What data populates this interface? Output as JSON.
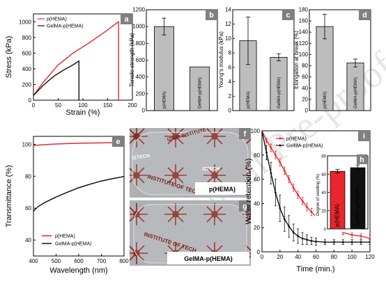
{
  "watermark": "Journal Pre-proof",
  "colors": {
    "phema": "#e8262c",
    "gelma": "#111111",
    "bar": "#bdbdbd",
    "letter_bg": "#808080"
  },
  "chart_data": [
    {
      "id": "a",
      "letter": "a",
      "type": "line",
      "xlabel": "Strain (%)",
      "ylabel": "Stress (kPa)",
      "xlim": [
        0,
        200
      ],
      "ylim": [
        0,
        1100
      ],
      "xticks": [
        "0",
        "50",
        "100",
        "150",
        "200"
      ],
      "yticks": [
        "0",
        "200",
        "400",
        "600",
        "800",
        "1000"
      ],
      "legend_position": "top-left",
      "series": [
        {
          "name": "p(HEMA)",
          "x": [
            0,
            20,
            50,
            80,
            110,
            140,
            172,
            172
          ],
          "y": [
            60,
            230,
            450,
            600,
            720,
            850,
            1000,
            0
          ]
        },
        {
          "name": "GelMA-p(HEMA)",
          "x": [
            0,
            20,
            40,
            60,
            80,
            92,
            92
          ],
          "y": [
            60,
            190,
            300,
            380,
            450,
            500,
            0
          ]
        }
      ]
    },
    {
      "id": "b",
      "letter": "b",
      "type": "bar",
      "ylabel": "Tensile strength (kPa)",
      "ylim": [
        0,
        1200
      ],
      "yticks": [
        "0",
        "200",
        "400",
        "600",
        "800",
        "1000",
        "1200"
      ],
      "categories": [
        "p(HEMA)",
        "GelMA-p(HEMA)"
      ],
      "values": [
        1000,
        520
      ],
      "errors": [
        100,
        0
      ]
    },
    {
      "id": "c",
      "letter": "c",
      "type": "bar",
      "ylabel": "Young's modulus (kPa)",
      "ylim": [
        0,
        14
      ],
      "yticks": [
        "0",
        "2",
        "4",
        "6",
        "8",
        "10",
        "12",
        "14"
      ],
      "categories": [
        "p(HEMA)",
        "GelMA-p(HEMA)"
      ],
      "values": [
        9.7,
        7.4
      ],
      "errors": [
        3.3,
        0.5
      ]
    },
    {
      "id": "d",
      "letter": "d",
      "type": "bar",
      "ylabel": "Elongation at break (%)",
      "ylim": [
        0,
        180
      ],
      "yticks": [
        "0",
        "20",
        "40",
        "60",
        "80",
        "100",
        "120",
        "140",
        "160",
        "180"
      ],
      "categories": [
        "p(HEMA)",
        "GelMA-p(HEMA)"
      ],
      "values": [
        150,
        85
      ],
      "errors": [
        22,
        7
      ]
    },
    {
      "id": "e",
      "letter": "e",
      "type": "line",
      "xlabel": "Wavelength (nm)",
      "ylabel": "Transmittance (%)",
      "xlim": [
        400,
        800
      ],
      "ylim": [
        30,
        105
      ],
      "xticks": [
        "400",
        "500",
        "600",
        "700",
        "800"
      ],
      "yticks": [
        "40",
        "60",
        "80",
        "100"
      ],
      "legend_position": "bottom-left",
      "series": [
        {
          "name": "p(HEMA)",
          "x": [
            400,
            450,
            500,
            550,
            600,
            650,
            700,
            750,
            800
          ],
          "y": [
            99.3,
            99.8,
            100.2,
            100.5,
            100.7,
            100.8,
            100.9,
            101,
            101
          ]
        },
        {
          "name": "GelMA-p(HEMA)",
          "x": [
            400,
            420,
            450,
            500,
            550,
            600,
            650,
            700,
            750,
            800
          ],
          "y": [
            58,
            61,
            63.5,
            67,
            70,
            72.8,
            75,
            77,
            78.5,
            79.8
          ]
        }
      ]
    },
    {
      "id": "i",
      "letter": "i",
      "type": "line",
      "xlabel": "Time (min.)",
      "ylabel": "Water retention (%)",
      "xlim": [
        0,
        120
      ],
      "ylim": [
        0,
        100
      ],
      "xticks": [
        "0",
        "20",
        "40",
        "60",
        "80",
        "100",
        "120"
      ],
      "yticks": [
        "0",
        "20",
        "40",
        "60",
        "80",
        "100"
      ],
      "legend_position": "top-right",
      "series": [
        {
          "name": "p(HEMA)",
          "x": [
            0,
            5,
            10,
            15,
            20,
            25,
            30,
            35,
            40,
            45,
            50,
            55,
            60,
            70,
            80,
            90,
            100,
            110,
            120
          ],
          "y": [
            100,
            92,
            86,
            80,
            74,
            67,
            60,
            53,
            47,
            42,
            37,
            33,
            29,
            23,
            19,
            16,
            14,
            13,
            11
          ],
          "errors": [
            0,
            2,
            3,
            3,
            3,
            3,
            3,
            3,
            3,
            3,
            3,
            3,
            3,
            2,
            2,
            2,
            2,
            2,
            2
          ]
        },
        {
          "name": "GelMA-p(HEMA)",
          "x": [
            0,
            5,
            10,
            15,
            20,
            25,
            30,
            35,
            40,
            45,
            50,
            55,
            60,
            70,
            80,
            90,
            100,
            110,
            120
          ],
          "y": [
            100,
            82,
            65,
            49,
            36,
            27,
            21,
            16,
            13,
            11,
            10,
            9,
            8.5,
            8,
            8,
            8,
            8,
            8,
            8
          ],
          "errors": [
            0,
            6,
            9,
            11,
            11,
            10,
            9,
            7,
            6,
            5,
            4,
            3,
            3,
            2,
            2,
            2,
            2,
            2,
            2
          ]
        }
      ]
    },
    {
      "id": "h",
      "letter": "h",
      "type": "bar",
      "ylabel": "Degree of swelling (%)",
      "ylim": [
        0,
        80
      ],
      "yticks": [
        "0",
        "20",
        "40",
        "60",
        "80"
      ],
      "categories": [
        "p(HEMA)",
        "GelMA-p(HEMA)"
      ],
      "values": [
        63,
        67
      ],
      "errors": [
        2,
        3
      ]
    }
  ],
  "photos": [
    {
      "id": "f",
      "letter": "f",
      "label": "p(HEMA)",
      "texts": [
        "IZTECH",
        "IZTECH",
        "INSTITUTE OF TECH",
        "IZMIR INSTITUTE"
      ]
    },
    {
      "id": "g",
      "letter": "g",
      "label": "GelMA-p(HEMA)",
      "texts": [
        "INSTITUTE OF TECH"
      ]
    }
  ]
}
